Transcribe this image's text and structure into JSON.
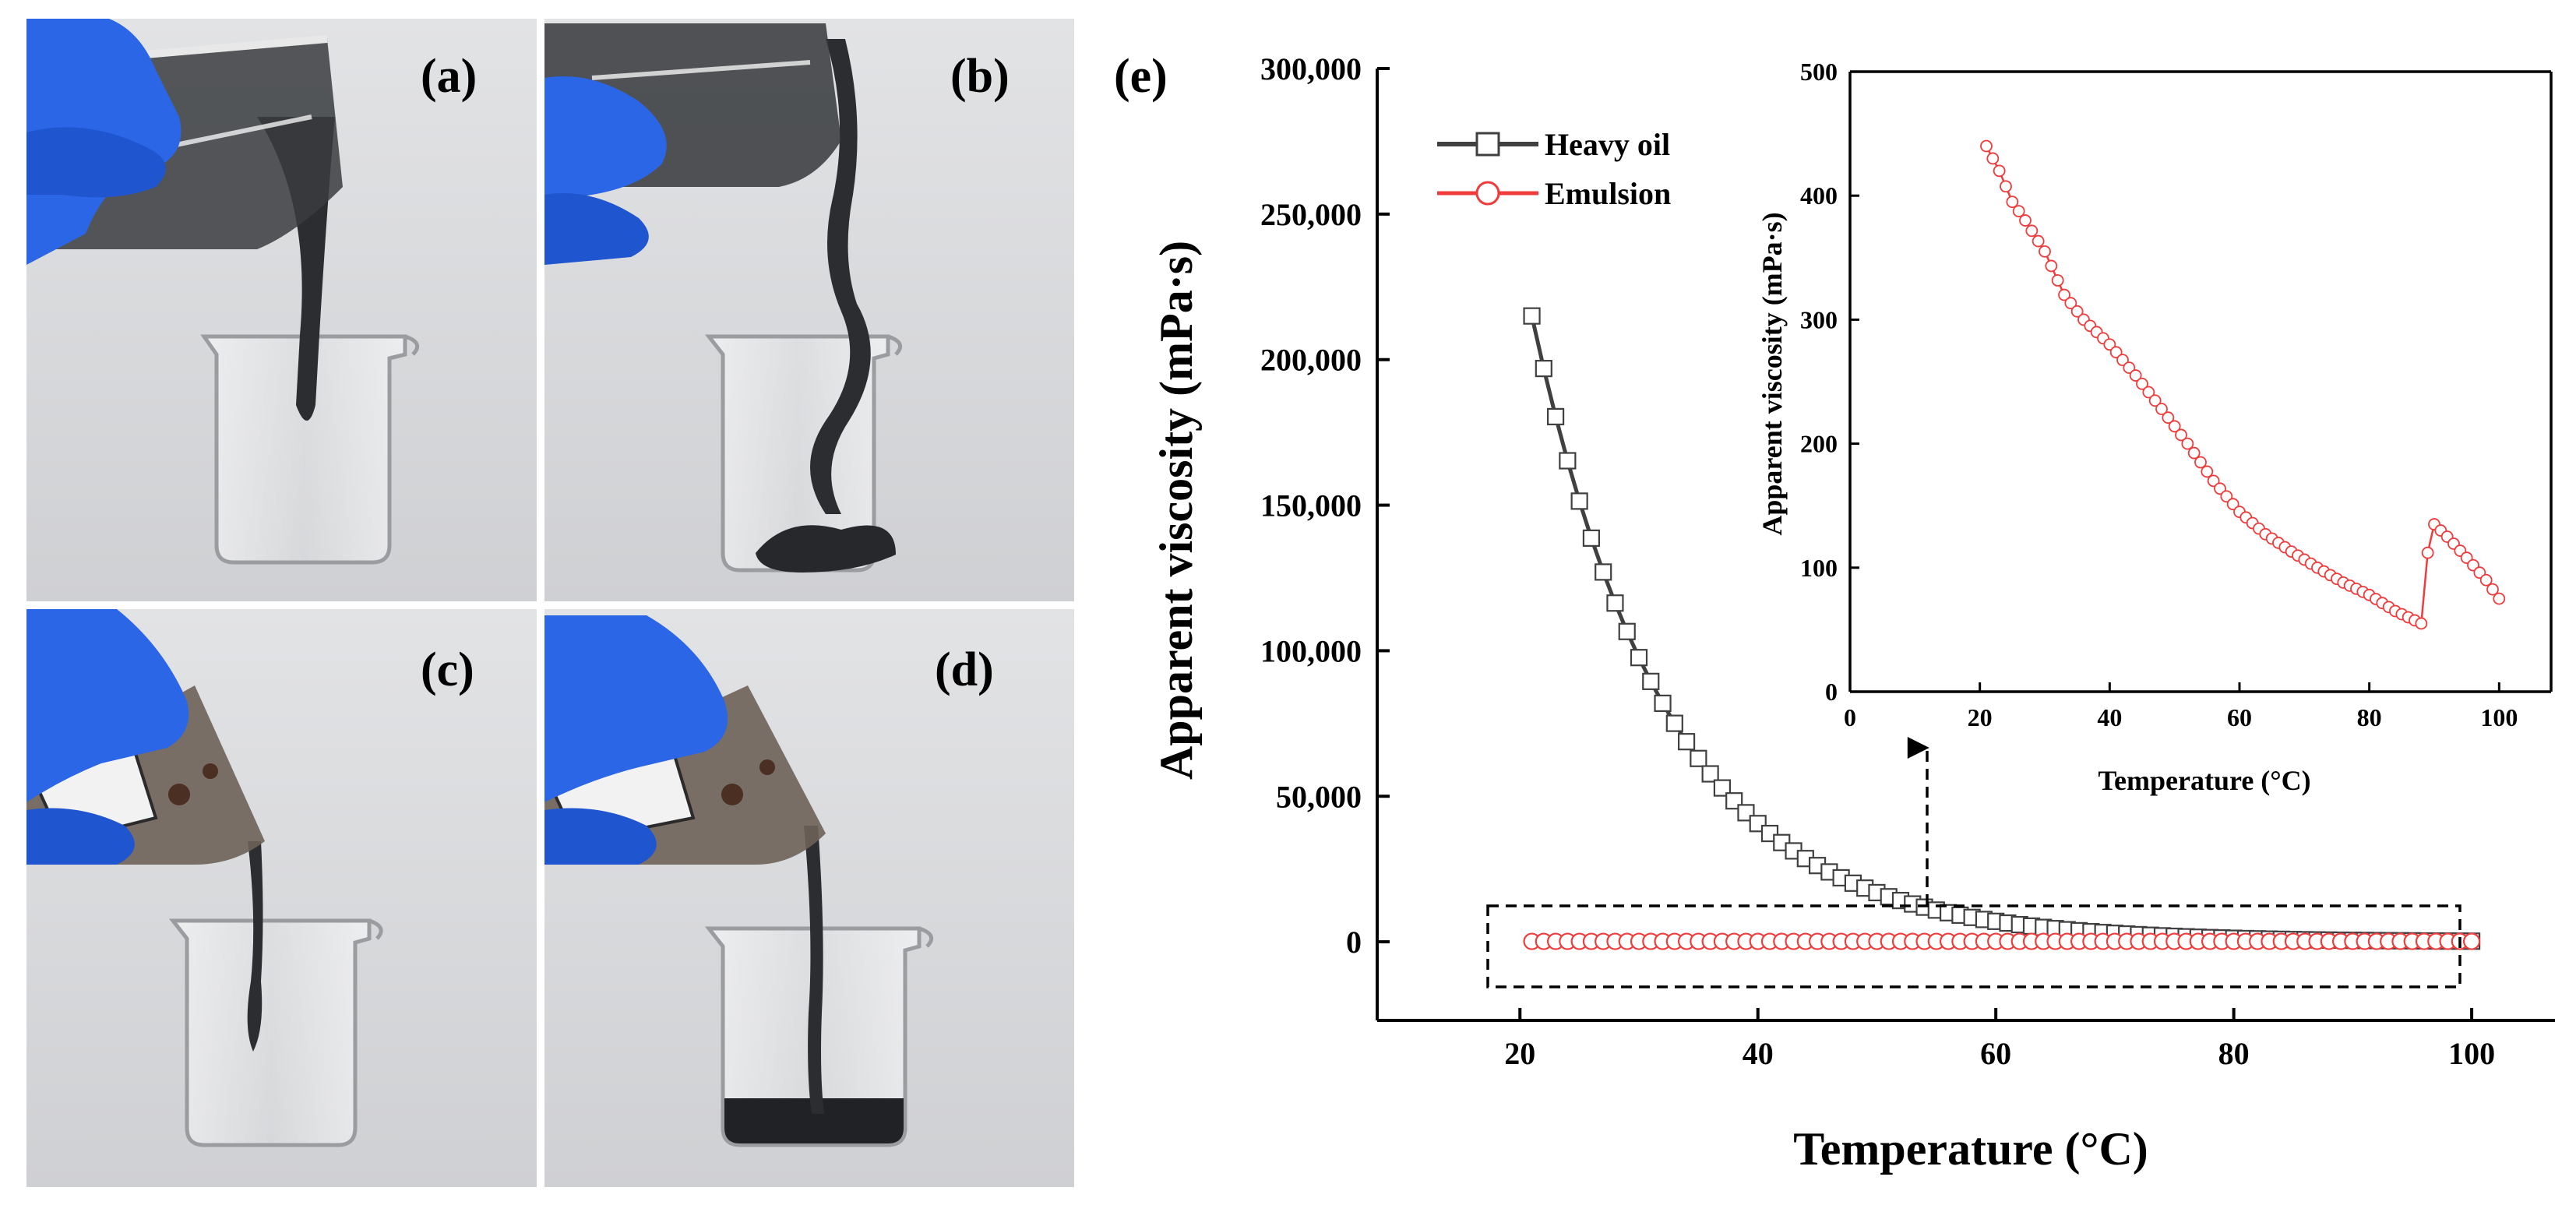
{
  "panels": [
    {
      "label": "(a)"
    },
    {
      "label": "(b)"
    },
    {
      "label": "(c)"
    },
    {
      "label": "(d)"
    }
  ],
  "colors": {
    "heavy_oil": "#404040",
    "emulsion": "#ef3b3b",
    "glove": "#2a66e6",
    "background_photo": "#d9dadc",
    "oil_dark": "#2b2d30"
  },
  "chart_data": [
    {
      "panel_label": "(e)",
      "type": "line",
      "xlabel": "Temperature (°C)",
      "ylabel": "Apparent viscosity (mPa·s)",
      "xlim": [
        8,
        107
      ],
      "ylim": [
        -27000,
        300000
      ],
      "x_ticks": [
        20,
        40,
        60,
        80,
        100
      ],
      "x_tick_labels": [
        "20",
        "40",
        "60",
        "80",
        "100"
      ],
      "y_ticks": [
        0,
        50000,
        100000,
        150000,
        200000,
        250000,
        300000
      ],
      "y_tick_labels": [
        "0",
        "50,000",
        "100,000",
        "150,000",
        "200,000",
        "250,000",
        "300,000"
      ],
      "legend_position": "top-left",
      "series": [
        {
          "name": "Heavy oil",
          "marker": "square",
          "x_start": 21,
          "x_end": 100,
          "x_step": 1,
          "y_at_start": 215000,
          "decay_rate": 0.0877
        },
        {
          "name": "Emulsion",
          "marker": "circle",
          "x_start": 21,
          "x_end": 100,
          "x_step": 1,
          "y_constant": 150
        }
      ],
      "annotation": "dashed box around emulsion curve with arrow pointing to inset"
    },
    {
      "type": "line",
      "role": "inset",
      "xlabel": "Temperature (°C)",
      "ylabel": "Apparent viscosity (mPa·s)",
      "xlim": [
        0,
        108
      ],
      "ylim": [
        0,
        500
      ],
      "x_ticks": [
        0,
        20,
        40,
        60,
        80,
        100
      ],
      "x_tick_labels": [
        "0",
        "20",
        "40",
        "60",
        "80",
        "100"
      ],
      "y_ticks": [
        0,
        100,
        200,
        300,
        400,
        500
      ],
      "y_tick_labels": [
        "0",
        "100",
        "200",
        "300",
        "400",
        "500"
      ],
      "series": [
        {
          "name": "Emulsion",
          "marker": "circle",
          "x": [
            21,
            23,
            25,
            27,
            30,
            33,
            36,
            40,
            44,
            48,
            52,
            56,
            60,
            64,
            68,
            72,
            76,
            80,
            84,
            88,
            89,
            90,
            92,
            95,
            98,
            100
          ],
          "y": [
            440,
            420,
            395,
            380,
            355,
            320,
            300,
            280,
            255,
            228,
            200,
            170,
            145,
            127,
            113,
            100,
            88,
            78,
            65,
            55,
            112,
            135,
            125,
            108,
            90,
            75
          ]
        }
      ]
    }
  ]
}
